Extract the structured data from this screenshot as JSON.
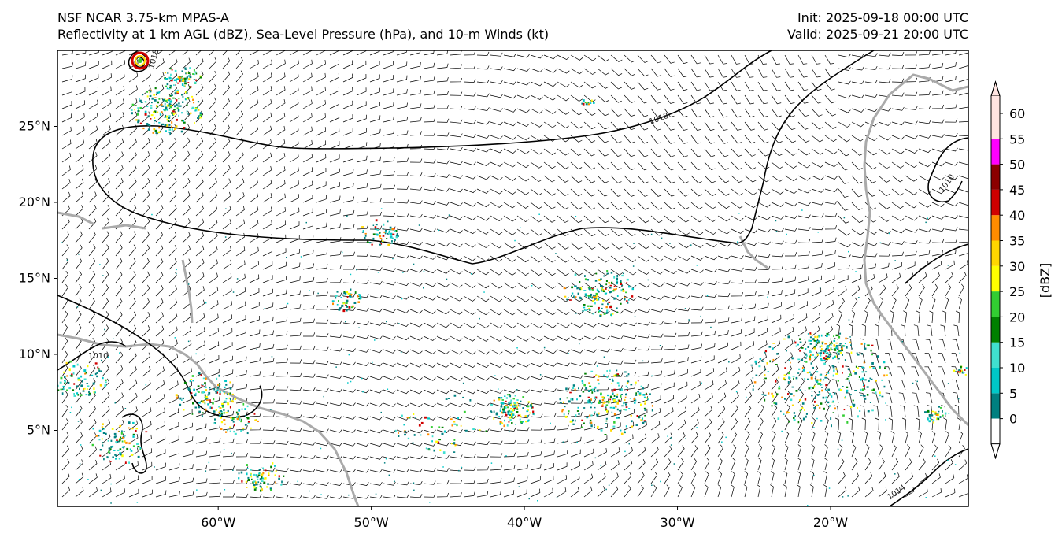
{
  "header": {
    "model": "NSF NCAR 3.75-km MPAS-A",
    "fields": "Reflectivity at 1 km AGL (dBZ), Sea-Level Pressure (hPa), and 10-m Winds (kt)",
    "init": "Init: 2025-09-18 00:00 UTC",
    "valid": "Valid: 2025-09-21 20:00 UTC"
  },
  "map": {
    "lon_range": [
      -70.5,
      -11
    ],
    "lat_range": [
      0,
      30
    ],
    "lat_ticks": [
      {
        "value": 25,
        "label": "25°N"
      },
      {
        "value": 20,
        "label": "20°N"
      },
      {
        "value": 15,
        "label": "15°N"
      },
      {
        "value": 10,
        "label": "10°N"
      },
      {
        "value": 5,
        "label": "5°N"
      }
    ],
    "lon_ticks": [
      {
        "value": -60,
        "label": "60°W"
      },
      {
        "value": -50,
        "label": "50°W"
      },
      {
        "value": -40,
        "label": "40°W"
      },
      {
        "value": -30,
        "label": "30°W"
      },
      {
        "value": -20,
        "label": "20°W"
      }
    ],
    "isobar_labels": [
      "1018",
      "1018",
      "1010",
      "1010",
      "1014"
    ],
    "colors": {
      "isobar": "#000000",
      "coastline": "#aaaaaa",
      "wind_barb": "#000000"
    }
  },
  "colorbar": {
    "label": "[dBZ]",
    "ticks": [
      "0",
      "5",
      "10",
      "15",
      "20",
      "25",
      "30",
      "35",
      "40",
      "45",
      "50",
      "55",
      "60"
    ],
    "colors": [
      "#008080",
      "#00c8c8",
      "#40e0d0",
      "#008000",
      "#32cd32",
      "#ffff00",
      "#ffd700",
      "#ff8c00",
      "#d00000",
      "#8b0000",
      "#ff00ff",
      "#ffe4e1"
    ]
  }
}
